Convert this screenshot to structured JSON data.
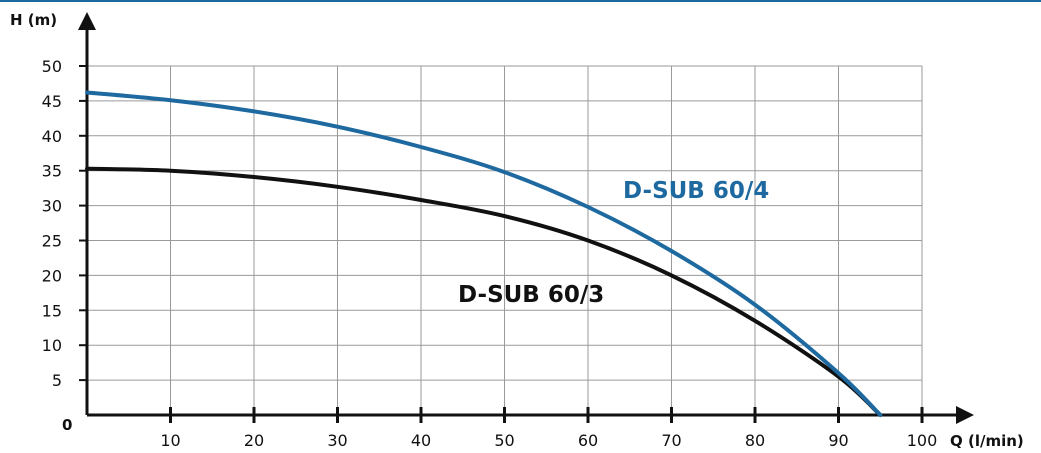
{
  "chart_data": {
    "type": "line",
    "title": "",
    "xlabel": "Q (l/min)",
    "ylabel": "H (m)",
    "origin_label": "0",
    "xlim": [
      0,
      100
    ],
    "ylim": [
      0,
      50
    ],
    "grid": true,
    "x_ticks": [
      "10",
      "20",
      "30",
      "40",
      "50",
      "60",
      "70",
      "80",
      "90",
      "100"
    ],
    "y_ticks": [
      "5",
      "10",
      "15",
      "20",
      "25",
      "30",
      "35",
      "40",
      "45",
      "50"
    ],
    "series": [
      {
        "name": "D-SUB 60/4",
        "color": "#1e6aa0",
        "x": [
          0,
          10,
          20,
          30,
          40,
          50,
          60,
          70,
          80,
          90,
          95
        ],
        "y": [
          46.2,
          45.1,
          43.5,
          41.3,
          38.4,
          34.8,
          29.8,
          23.5,
          15.8,
          6.0,
          0
        ]
      },
      {
        "name": "D-SUB 60/3",
        "color": "#111111",
        "x": [
          0,
          10,
          20,
          30,
          40,
          50,
          60,
          70,
          80,
          90,
          95
        ],
        "y": [
          35.3,
          35.0,
          34.1,
          32.7,
          30.8,
          28.5,
          25.0,
          20.0,
          13.5,
          5.5,
          0
        ]
      }
    ]
  }
}
